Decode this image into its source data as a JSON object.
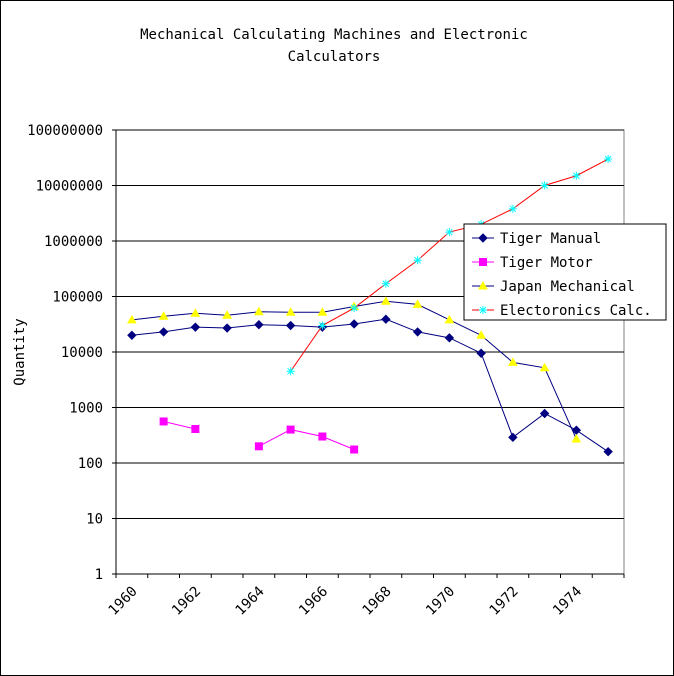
{
  "chart_data": {
    "type": "line",
    "title_line1": "Mechanical Calculating Machines and Electronic",
    "title_line2": "Calculators",
    "xlabel": "",
    "ylabel": "Quantity",
    "y_scale": "log",
    "ylim": [
      1,
      100000000
    ],
    "y_ticks": [
      "1",
      "10",
      "100",
      "1000",
      "10000",
      "100000",
      "1000000",
      "10000000",
      "100000000"
    ],
    "x_ticks": [
      "1960",
      "1962",
      "1964",
      "1966",
      "1968",
      "1970",
      "1972",
      "1974"
    ],
    "x": [
      1960,
      1961,
      1962,
      1963,
      1964,
      1965,
      1966,
      1967,
      1968,
      1969,
      1970,
      1971,
      1972,
      1973,
      1974,
      1975
    ],
    "grid": "horizontal",
    "legend_position": "right",
    "series": [
      {
        "name": "Tiger Manual",
        "color": "#000080",
        "marker": "diamond",
        "values": [
          20000,
          23000,
          28000,
          27000,
          31000,
          30000,
          28000,
          32000,
          39000,
          23000,
          18000,
          9500,
          290,
          780,
          390,
          160
        ]
      },
      {
        "name": "Tiger Motor",
        "color": "#ff00ff",
        "marker": "square",
        "values": [
          null,
          560,
          410,
          null,
          200,
          400,
          300,
          175,
          null,
          null,
          null,
          null,
          null,
          null,
          null,
          null
        ]
      },
      {
        "name": "Japan Mechanical",
        "color": "#ffff00",
        "line_color": "#000080",
        "marker": "triangle",
        "values": [
          38000,
          44000,
          50000,
          46000,
          53000,
          52000,
          52000,
          66000,
          82000,
          72000,
          38000,
          20000,
          6500,
          5200,
          270,
          null
        ]
      },
      {
        "name": "Electoronics Calc.",
        "color": "#00ffff",
        "line_color": "#ff0000",
        "marker": "star",
        "values": [
          null,
          null,
          null,
          null,
          null,
          4500,
          30000,
          62000,
          170000,
          450000,
          1450000,
          2000000,
          3800000,
          10000000,
          15000000,
          30000000
        ]
      }
    ]
  }
}
